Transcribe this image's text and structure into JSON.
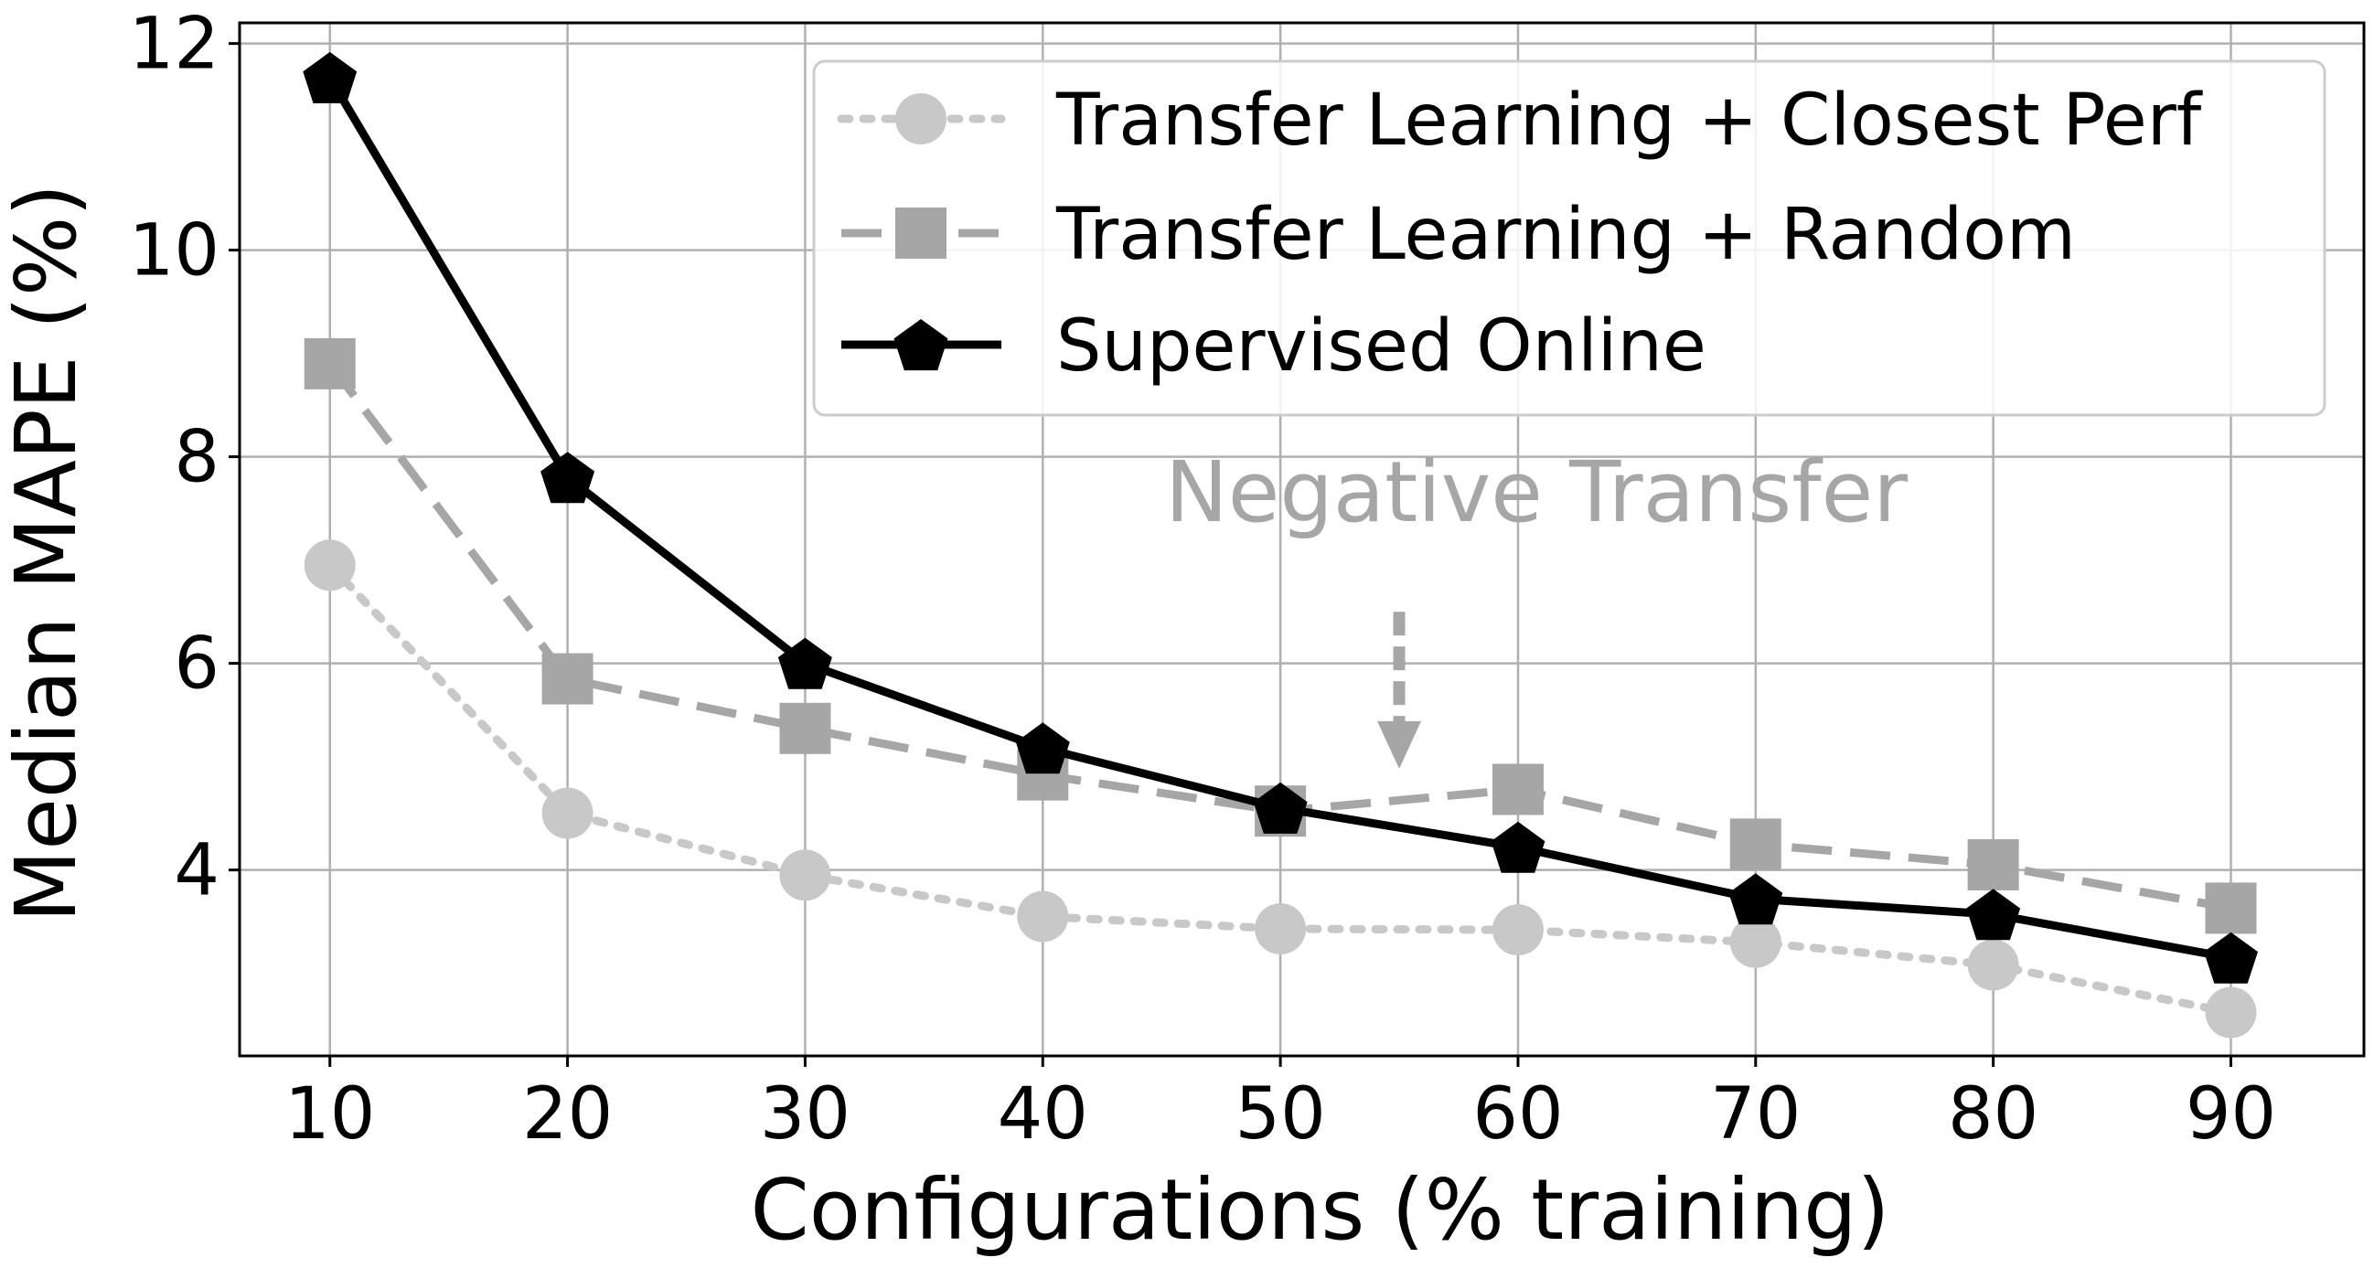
{
  "chart_data": {
    "type": "line",
    "xlabel": "Configurations (% training)",
    "ylabel": "Median MAPE (%)",
    "x": [
      10,
      20,
      30,
      40,
      50,
      60,
      70,
      80,
      90
    ],
    "xlim": [
      6.2,
      95.6
    ],
    "ylim": [
      2.2,
      12.2
    ],
    "xticks": [
      10,
      20,
      30,
      40,
      50,
      60,
      70,
      80,
      90
    ],
    "yticks": [
      4,
      6,
      8,
      10,
      12
    ],
    "grid": true,
    "legend_position": "top-right",
    "series": [
      {
        "name": "Transfer Learning + Closest Perf",
        "values": [
          6.95,
          4.55,
          3.95,
          3.55,
          3.43,
          3.42,
          3.3,
          3.08,
          2.62
        ],
        "color": "#c8c8c8",
        "line_style": "dotted",
        "marker": "circle"
      },
      {
        "name": "Transfer Learning + Random",
        "values": [
          8.9,
          5.85,
          5.37,
          4.92,
          4.57,
          4.78,
          4.25,
          4.05,
          3.63
        ],
        "color": "#a6a6a6",
        "line_style": "dashed",
        "marker": "square"
      },
      {
        "name": "Supervised Online",
        "values": [
          11.67,
          7.8,
          6.0,
          5.18,
          4.6,
          4.22,
          3.72,
          3.57,
          3.15
        ],
        "color": "#000000",
        "line_style": "solid",
        "marker": "pentagon"
      }
    ],
    "annotations": [
      {
        "text": "Negative Transfer",
        "arrow_to_x": 55,
        "arrow_to_y": 4.98,
        "color": "#a6a6a6"
      }
    ]
  }
}
